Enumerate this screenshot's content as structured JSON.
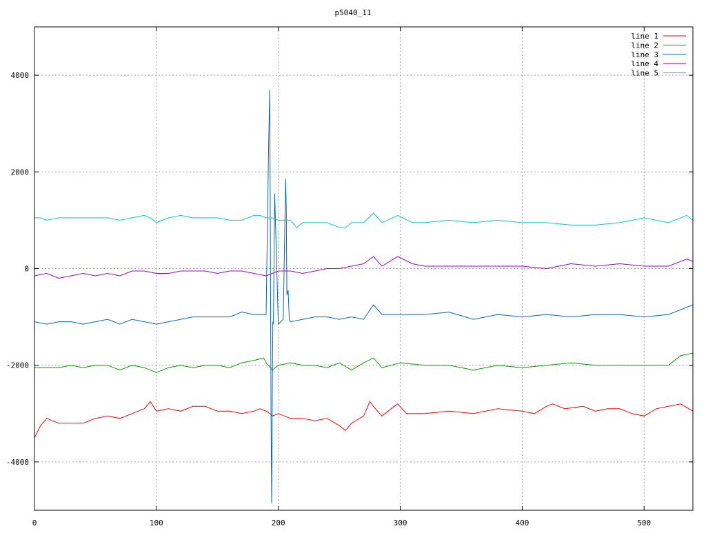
{
  "chart_data": {
    "type": "line",
    "title": "p5040_11",
    "xlabel": "",
    "ylabel": "",
    "xlim": [
      0,
      540
    ],
    "ylim": [
      -5000,
      5000
    ],
    "xticks": [
      0,
      100,
      200,
      300,
      400,
      500
    ],
    "yticks": [
      -4000,
      -2000,
      0,
      2000,
      4000
    ],
    "ytick_labels": [
      "-4000",
      "-2000",
      "0",
      "2000",
      "4000"
    ],
    "grid": true,
    "legend_position": "top-right",
    "series": [
      {
        "name": "line 1",
        "color": "#ff0000",
        "x": [
          0,
          2,
          5,
          10,
          15,
          20,
          30,
          40,
          50,
          60,
          70,
          80,
          90,
          95,
          100,
          110,
          120,
          130,
          140,
          150,
          160,
          170,
          180,
          185,
          190,
          193,
          195,
          200,
          210,
          220,
          230,
          240,
          250,
          255,
          260,
          270,
          275,
          278,
          285,
          290,
          295,
          298,
          305,
          320,
          340,
          360,
          380,
          400,
          410,
          420,
          425,
          435,
          450,
          460,
          470,
          480,
          490,
          500,
          510,
          520,
          530,
          540
        ],
        "y": [
          -3500,
          -3400,
          -3250,
          -3100,
          -3150,
          -3200,
          -3200,
          -3200,
          -3100,
          -3050,
          -3100,
          -3000,
          -2900,
          -2750,
          -2950,
          -2900,
          -2950,
          -2850,
          -2850,
          -2950,
          -2950,
          -3000,
          -2950,
          -2900,
          -2950,
          -3000,
          -3050,
          -3000,
          -3100,
          -3100,
          -3150,
          -3100,
          -3250,
          -3350,
          -3200,
          -3050,
          -2750,
          -2850,
          -3050,
          -2950,
          -2850,
          -2800,
          -3000,
          -3000,
          -2950,
          -3000,
          -2900,
          -2950,
          -3000,
          -2850,
          -2800,
          -2900,
          -2850,
          -2950,
          -2900,
          -2900,
          -3000,
          -3050,
          -2900,
          -2850,
          -2800,
          -2950
        ]
      },
      {
        "name": "line 2",
        "color": "#00a000",
        "x": [
          0,
          10,
          20,
          30,
          40,
          50,
          60,
          70,
          80,
          90,
          100,
          110,
          120,
          130,
          140,
          150,
          160,
          170,
          180,
          188,
          190,
          195,
          200,
          210,
          220,
          230,
          240,
          250,
          260,
          270,
          278,
          285,
          300,
          320,
          340,
          360,
          380,
          400,
          420,
          440,
          460,
          480,
          500,
          520,
          530,
          540
        ],
        "y": [
          -2050,
          -2050,
          -2050,
          -2000,
          -2050,
          -2000,
          -2000,
          -2100,
          -2000,
          -2050,
          -2150,
          -2050,
          -2000,
          -2050,
          -2000,
          -2000,
          -2050,
          -1950,
          -1900,
          -1850,
          -1950,
          -2100,
          -2000,
          -1950,
          -2000,
          -2000,
          -2050,
          -1950,
          -2100,
          -1950,
          -1850,
          -2050,
          -1950,
          -2000,
          -2000,
          -2100,
          -2000,
          -2050,
          -2000,
          -1950,
          -2000,
          -2000,
          -2000,
          -2000,
          -1800,
          -1750
        ]
      },
      {
        "name": "line 3",
        "color": "#0066cc",
        "x": [
          0,
          10,
          20,
          30,
          40,
          50,
          60,
          70,
          80,
          90,
          100,
          110,
          120,
          130,
          140,
          150,
          160,
          170,
          180,
          190,
          192,
          193,
          194,
          194.5,
          195,
          195.5,
          196,
          197,
          200,
          204,
          206,
          206.5,
          207,
          208,
          209,
          210,
          220,
          230,
          240,
          250,
          260,
          270,
          278,
          285,
          300,
          320,
          340,
          360,
          380,
          400,
          420,
          440,
          460,
          480,
          500,
          520,
          530,
          540
        ],
        "y": [
          -1100,
          -1150,
          -1100,
          -1100,
          -1150,
          -1100,
          -1050,
          -1150,
          -1050,
          -1100,
          -1150,
          -1100,
          -1050,
          -1000,
          -1000,
          -1000,
          -1000,
          -900,
          -950,
          -950,
          2550,
          3700,
          -3000,
          -4850,
          -2750,
          -1100,
          -1150,
          1550,
          -1150,
          -1050,
          1850,
          1250,
          -550,
          -450,
          -1050,
          -1100,
          -1050,
          -1000,
          -1000,
          -1050,
          -1000,
          -1050,
          -750,
          -950,
          -950,
          -950,
          -900,
          -1050,
          -950,
          -1000,
          -950,
          -1000,
          -950,
          -950,
          -1000,
          -950,
          -850,
          -750
        ]
      },
      {
        "name": "line 4",
        "color": "#a000d0",
        "x": [
          0,
          10,
          20,
          30,
          40,
          50,
          60,
          70,
          80,
          90,
          100,
          110,
          120,
          130,
          140,
          150,
          160,
          170,
          180,
          190,
          200,
          210,
          220,
          230,
          240,
          250,
          260,
          270,
          278,
          285,
          298,
          310,
          320,
          340,
          360,
          380,
          400,
          420,
          440,
          460,
          480,
          500,
          520,
          535,
          540
        ],
        "y": [
          -150,
          -100,
          -200,
          -150,
          -100,
          -150,
          -100,
          -150,
          -50,
          -50,
          -100,
          -100,
          -50,
          -50,
          -50,
          -100,
          -50,
          -50,
          -100,
          -150,
          -50,
          -50,
          -100,
          -50,
          0,
          0,
          50,
          100,
          250,
          50,
          250,
          100,
          50,
          50,
          50,
          50,
          50,
          0,
          100,
          50,
          100,
          50,
          50,
          200,
          150
        ]
      },
      {
        "name": "line 5",
        "color": "#00cccc",
        "x": [
          0,
          5,
          10,
          20,
          30,
          40,
          50,
          60,
          70,
          80,
          90,
          95,
          100,
          110,
          120,
          130,
          140,
          150,
          160,
          170,
          180,
          185,
          190,
          195,
          200,
          210,
          215,
          220,
          230,
          240,
          250,
          255,
          260,
          270,
          278,
          285,
          298,
          310,
          320,
          340,
          360,
          380,
          400,
          420,
          440,
          460,
          480,
          500,
          520,
          535,
          540
        ],
        "y": [
          1050,
          1050,
          1000,
          1050,
          1050,
          1050,
          1050,
          1050,
          1000,
          1050,
          1100,
          1050,
          950,
          1050,
          1100,
          1050,
          1050,
          1050,
          1000,
          1000,
          1100,
          1100,
          1050,
          1050,
          1000,
          1000,
          850,
          950,
          950,
          950,
          850,
          850,
          950,
          950,
          1150,
          950,
          1100,
          950,
          950,
          1000,
          950,
          1000,
          950,
          950,
          900,
          900,
          950,
          1050,
          950,
          1100,
          1000
        ]
      }
    ]
  }
}
